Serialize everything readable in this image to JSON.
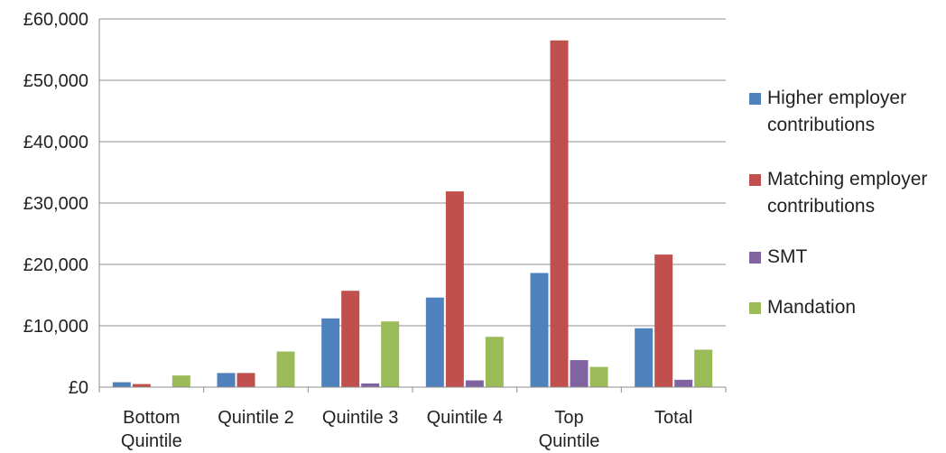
{
  "chart_data": {
    "type": "bar",
    "categories": [
      [
        "Bottom",
        "Quintile"
      ],
      [
        "Quintile 2"
      ],
      [
        "Quintile 3"
      ],
      [
        "Quintile 4"
      ],
      [
        "Top",
        "Quintile"
      ],
      [
        "Total"
      ]
    ],
    "series": [
      {
        "name": "Higher employer contributions",
        "legend_lines": [
          "Higher employer",
          "contributions"
        ],
        "color": "#4F81BD",
        "values": [
          800,
          2300,
          11200,
          14600,
          18600,
          9600
        ]
      },
      {
        "name": "Matching employer contributions",
        "legend_lines": [
          "Matching employer",
          "contributions"
        ],
        "color": "#C0504D",
        "values": [
          500,
          2300,
          15700,
          31900,
          56500,
          21600
        ]
      },
      {
        "name": "SMT",
        "legend_lines": [
          "SMT"
        ],
        "color": "#8064A2",
        "values": [
          0,
          0,
          600,
          1100,
          4400,
          1200
        ]
      },
      {
        "name": "Mandation",
        "legend_lines": [
          "Mandation"
        ],
        "color": "#9BBB59",
        "values": [
          1900,
          5800,
          10700,
          8200,
          3300,
          6100
        ]
      }
    ],
    "y_ticks": [
      "£0",
      "£10,000",
      "£20,000",
      "£30,000",
      "£40,000",
      "£50,000",
      "£60,000"
    ],
    "ylim": [
      0,
      60000
    ],
    "grid": true,
    "legend_position": "right",
    "title": "",
    "xlabel": "",
    "ylabel": ""
  }
}
